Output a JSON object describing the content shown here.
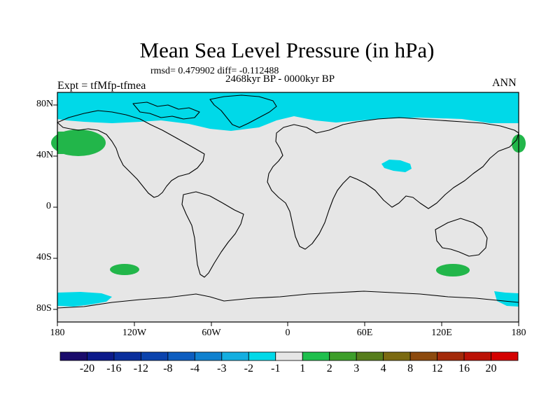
{
  "title": "Mean Sea Level Pressure (in hPa)",
  "stats": "rmsd= 0.479902 diff= -0.112488",
  "period": "2468kyr BP - 0000kyr BP",
  "experiment": "Expt = tfMfp-tfmea",
  "season": "ANN",
  "lat_labels": [
    "80N",
    "40N",
    "0",
    "40S",
    "80S"
  ],
  "lon_labels": [
    "180",
    "120W",
    "60W",
    "0",
    "60E",
    "120E",
    "180"
  ],
  "colorbar": {
    "labels": [
      "-20",
      "-16",
      "-12",
      "-8",
      "-4",
      "-3",
      "-2",
      "-1",
      "1",
      "2",
      "3",
      "4",
      "8",
      "12",
      "16",
      "20"
    ],
    "colors": [
      "#1a0b6b",
      "#0c1a8a",
      "#0a2e9c",
      "#0b43ad",
      "#0d5dbf",
      "#1081cf",
      "#14aee0",
      "#00d9e8",
      "#e6e6e6",
      "#1fbf4d",
      "#3d9e2a",
      "#567d1c",
      "#7b6a12",
      "#8c4a0e",
      "#a32a0a",
      "#bb1206",
      "#d40000"
    ]
  },
  "colors": {
    "map_background": "#e6e6e6",
    "negative_anomaly": "#00d9e8",
    "positive_anomaly": "#22b64a",
    "coastline": "#000000"
  }
}
